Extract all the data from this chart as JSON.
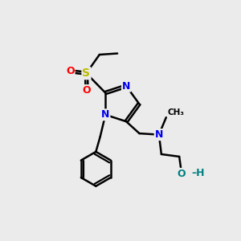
{
  "bg_color": "#ebebeb",
  "atom_colors": {
    "N": "#0000ee",
    "O": "#ff0000",
    "S": "#bbbb00",
    "OH": "#008080",
    "C": "#000000"
  }
}
